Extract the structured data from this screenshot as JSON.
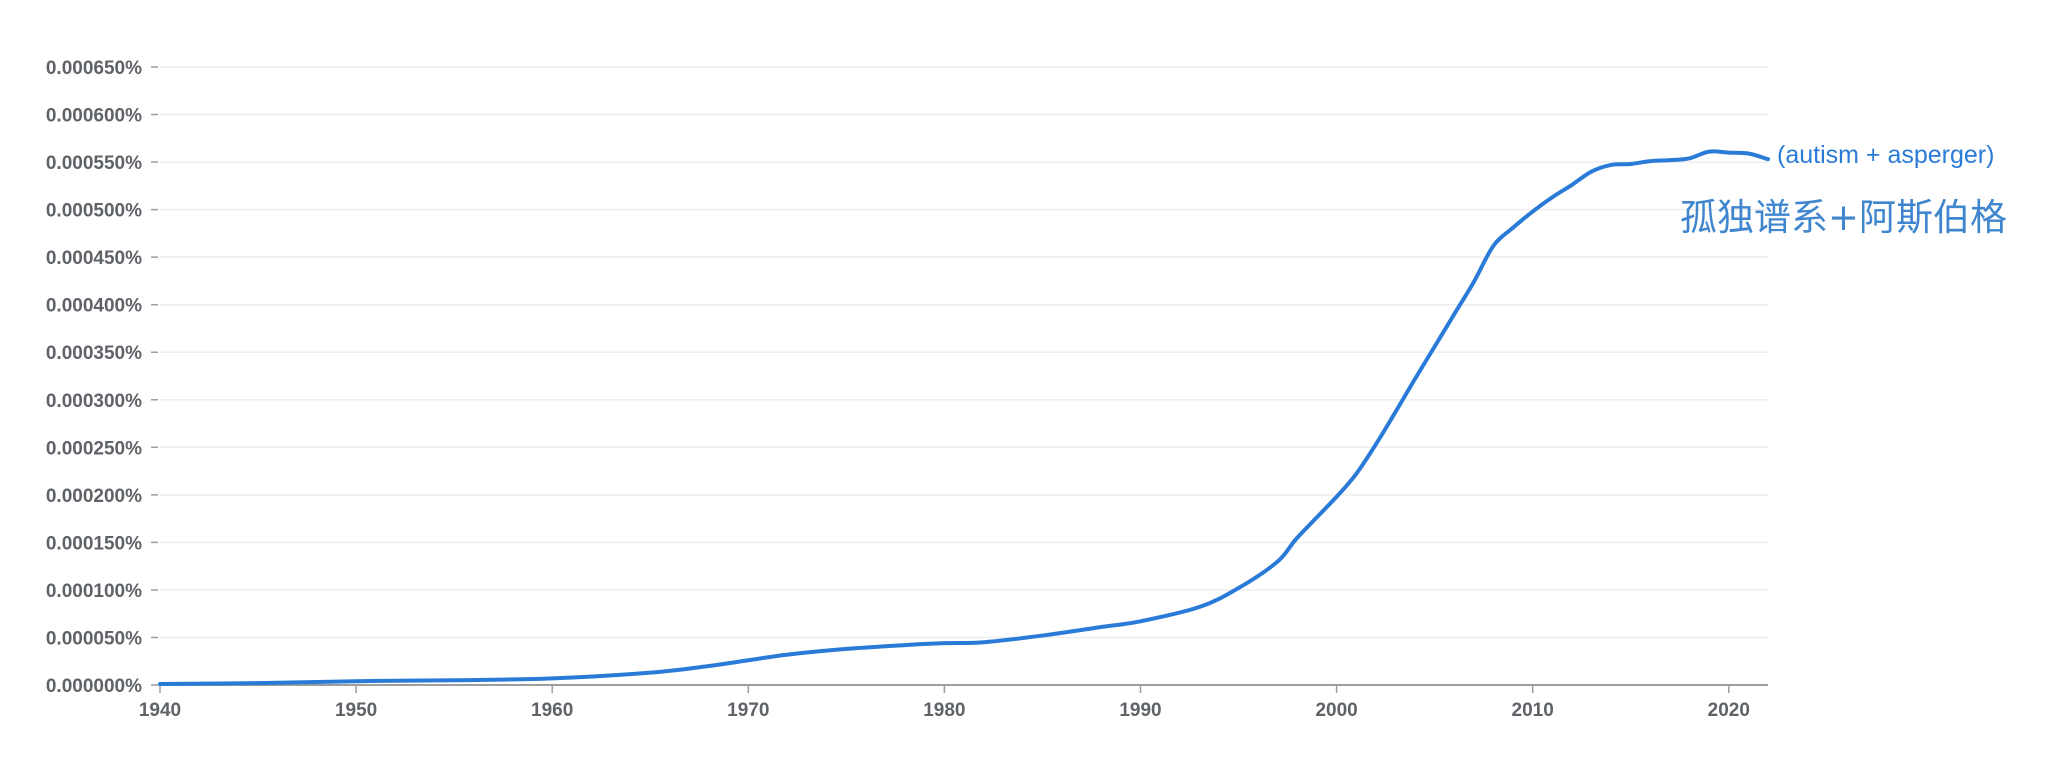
{
  "chart_data": {
    "type": "line",
    "title": "",
    "xlabel": "",
    "ylabel": "",
    "xlim": [
      1940,
      2022
    ],
    "ylim": [
      0,
      0.00065
    ],
    "grid": true,
    "x_ticks": [
      1940,
      1950,
      1960,
      1970,
      1980,
      1990,
      2000,
      2010,
      2020
    ],
    "y_ticks": [
      {
        "value": 0.0,
        "label": "0.000000%"
      },
      {
        "value": 5e-05,
        "label": "0.000050%"
      },
      {
        "value": 0.0001,
        "label": "0.000100%"
      },
      {
        "value": 0.00015,
        "label": "0.000150%"
      },
      {
        "value": 0.0002,
        "label": "0.000200%"
      },
      {
        "value": 0.00025,
        "label": "0.000250%"
      },
      {
        "value": 0.0003,
        "label": "0.000300%"
      },
      {
        "value": 0.00035,
        "label": "0.000350%"
      },
      {
        "value": 0.0004,
        "label": "0.000400%"
      },
      {
        "value": 0.00045,
        "label": "0.000450%"
      },
      {
        "value": 0.0005,
        "label": "0.000500%"
      },
      {
        "value": 0.00055,
        "label": "0.000550%"
      },
      {
        "value": 0.0006,
        "label": "0.000600%"
      },
      {
        "value": 0.00065,
        "label": "0.000650%"
      }
    ],
    "series": [
      {
        "name": "(autism + asperger)",
        "color": "#2a7bd8",
        "x": [
          1940,
          1945,
          1950,
          1955,
          1960,
          1965,
          1968,
          1970,
          1972,
          1975,
          1978,
          1980,
          1982,
          1985,
          1988,
          1990,
          1993,
          1995,
          1997,
          1998,
          2000,
          2001,
          2002,
          2003,
          2004,
          2005,
          2006,
          2007,
          2008,
          2009,
          2010,
          2011,
          2012,
          2013,
          2014,
          2015,
          2016,
          2017,
          2018,
          2019,
          2020,
          2021,
          2022
        ],
        "values": [
          1e-06,
          2e-06,
          4e-06,
          5e-06,
          7e-06,
          1.3e-05,
          2e-05,
          2.6e-05,
          3.2e-05,
          3.8e-05,
          4.2e-05,
          4.4e-05,
          4.5e-05,
          5.2e-05,
          6.1e-05,
          6.7e-05,
          8.2e-05,
          0.000102,
          0.00013,
          0.000155,
          0.000198,
          0.000222,
          0.000253,
          0.000287,
          0.000322,
          0.000356,
          0.00039,
          0.000424,
          0.000462,
          0.000481,
          0.000498,
          0.000513,
          0.000526,
          0.00054,
          0.000547,
          0.000548,
          0.000551,
          0.000552,
          0.000554,
          0.000561,
          0.00056,
          0.000559,
          0.000553
        ]
      }
    ],
    "annotations": [
      "孤独谱系+阿斯伯格"
    ]
  },
  "colors": {
    "series": "#2a7bd8",
    "annotation": "#3f86cf",
    "tick_text": "#5f6368",
    "grid": "#eeeeee",
    "axis": "#9e9e9e"
  }
}
